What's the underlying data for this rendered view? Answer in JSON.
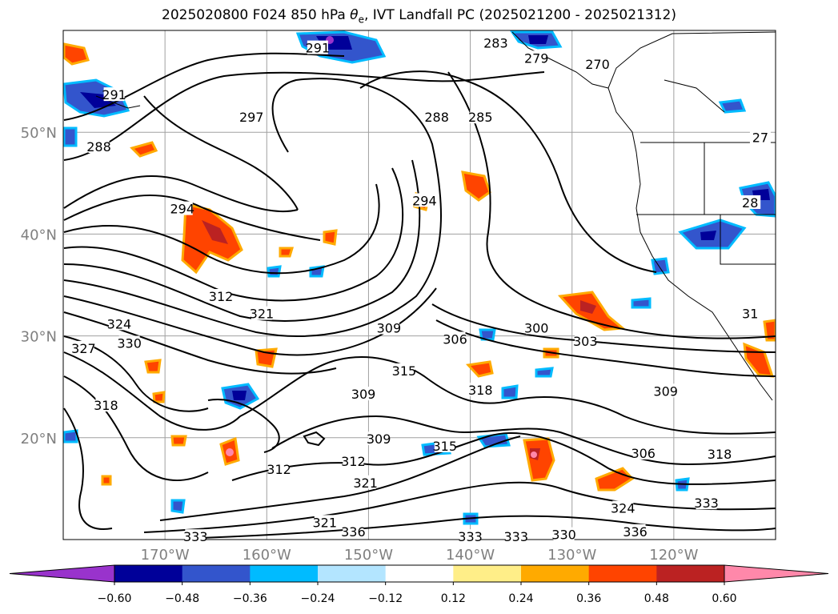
{
  "title": "2025020800 F024 850 hPa θe, IVT Landfall PC (2025021200 - 2025021312)",
  "title_parts": {
    "prefix": "2025020800 F024 850 hPa ",
    "theta": "θ",
    "sub": "e",
    "suffix": ", IVT Landfall PC (2025021200 - 2025021312)"
  },
  "map": {
    "lon_range": [
      -180,
      -110
    ],
    "lat_range": [
      10,
      60
    ],
    "lat_labels": [
      {
        "lat": 50,
        "text": "50°N"
      },
      {
        "lat": 40,
        "text": "40°N"
      },
      {
        "lat": 30,
        "text": "30°N"
      },
      {
        "lat": 20,
        "text": "20°N"
      }
    ],
    "lon_labels": [
      {
        "lon": -170,
        "text": "170°W"
      },
      {
        "lon": -160,
        "text": "160°W"
      },
      {
        "lon": -150,
        "text": "150°W"
      },
      {
        "lon": -140,
        "text": "140°W"
      },
      {
        "lon": -130,
        "text": "130°W"
      },
      {
        "lon": -120,
        "text": "120°W"
      }
    ],
    "grid_lons": [
      -170,
      -160,
      -150,
      -140,
      -130,
      -120
    ],
    "grid_lats": [
      20,
      30,
      40,
      50
    ],
    "contour_labels": [
      {
        "text": "291",
        "lon": -155,
        "lat": 58.3
      },
      {
        "text": "283",
        "lon": -137.5,
        "lat": 58.8
      },
      {
        "text": "279",
        "lon": -133.5,
        "lat": 57.3
      },
      {
        "text": "270",
        "lon": -127.5,
        "lat": 56.7
      },
      {
        "text": "291",
        "lon": -175,
        "lat": 53.7
      },
      {
        "text": "297",
        "lon": -161.5,
        "lat": 51.5
      },
      {
        "text": "288",
        "lon": -143.3,
        "lat": 51.5
      },
      {
        "text": "285",
        "lon": -139,
        "lat": 51.5
      },
      {
        "text": "27",
        "lon": -111.5,
        "lat": 49.5
      },
      {
        "text": "288",
        "lon": -176.5,
        "lat": 48.6
      },
      {
        "text": "294",
        "lon": -168.3,
        "lat": 42.5
      },
      {
        "text": "294",
        "lon": -144.5,
        "lat": 43.3
      },
      {
        "text": "28",
        "lon": -112.5,
        "lat": 43.1
      },
      {
        "text": "312",
        "lon": -164.5,
        "lat": 33.9
      },
      {
        "text": "321",
        "lon": -160.5,
        "lat": 32.2
      },
      {
        "text": "324",
        "lon": -174.5,
        "lat": 31.2
      },
      {
        "text": "327",
        "lon": -178,
        "lat": 28.8
      },
      {
        "text": "330",
        "lon": -173.5,
        "lat": 29.3
      },
      {
        "text": "309",
        "lon": -148,
        "lat": 30.8
      },
      {
        "text": "306",
        "lon": -141.5,
        "lat": 29.7
      },
      {
        "text": "300",
        "lon": -133.5,
        "lat": 30.8
      },
      {
        "text": "303",
        "lon": -128.7,
        "lat": 29.5
      },
      {
        "text": "31",
        "lon": -112.5,
        "lat": 32.2
      },
      {
        "text": "315",
        "lon": -146.5,
        "lat": 26.6
      },
      {
        "text": "318",
        "lon": -139,
        "lat": 24.7
      },
      {
        "text": "309",
        "lon": -120.8,
        "lat": 24.6
      },
      {
        "text": "309",
        "lon": -150.5,
        "lat": 24.3
      },
      {
        "text": "318",
        "lon": -175.8,
        "lat": 23.2
      },
      {
        "text": "309",
        "lon": -149,
        "lat": 19.9
      },
      {
        "text": "315",
        "lon": -142.5,
        "lat": 19.2
      },
      {
        "text": "312",
        "lon": -151.5,
        "lat": 17.7
      },
      {
        "text": "306",
        "lon": -123,
        "lat": 18.5
      },
      {
        "text": "318",
        "lon": -115.5,
        "lat": 18.4
      },
      {
        "text": "312",
        "lon": -158.8,
        "lat": 16.9
      },
      {
        "text": "321",
        "lon": -150.3,
        "lat": 15.6
      },
      {
        "text": "324",
        "lon": -125,
        "lat": 13.1
      },
      {
        "text": "333",
        "lon": -116.8,
        "lat": 13.6
      },
      {
        "text": "321",
        "lon": -154.3,
        "lat": 11.7
      },
      {
        "text": "336",
        "lon": -151.5,
        "lat": 10.8
      },
      {
        "text": "333",
        "lon": -167,
        "lat": 10.3
      },
      {
        "text": "333",
        "lon": -140,
        "lat": 10.3
      },
      {
        "text": "333",
        "lon": -135.5,
        "lat": 10.3
      },
      {
        "text": "330",
        "lon": -130.8,
        "lat": 10.5
      },
      {
        "text": "336",
        "lon": -123.8,
        "lat": 10.8
      }
    ]
  },
  "colorbar": {
    "ticks": [
      "−0.60",
      "−0.48",
      "−0.36",
      "−0.24",
      "−0.12",
      "0.12",
      "0.24",
      "0.36",
      "0.48",
      "0.60"
    ],
    "colors": [
      "#9933cc",
      "#000099",
      "#3355cc",
      "#00bbff",
      "#b3e5ff",
      "#ffffff",
      "#ffee88",
      "#ffaa00",
      "#ff4400",
      "#bb2222",
      "#ff88aa",
      "#ff88aa"
    ],
    "under_color": "#9933cc",
    "over_color": "#ff88aa"
  }
}
